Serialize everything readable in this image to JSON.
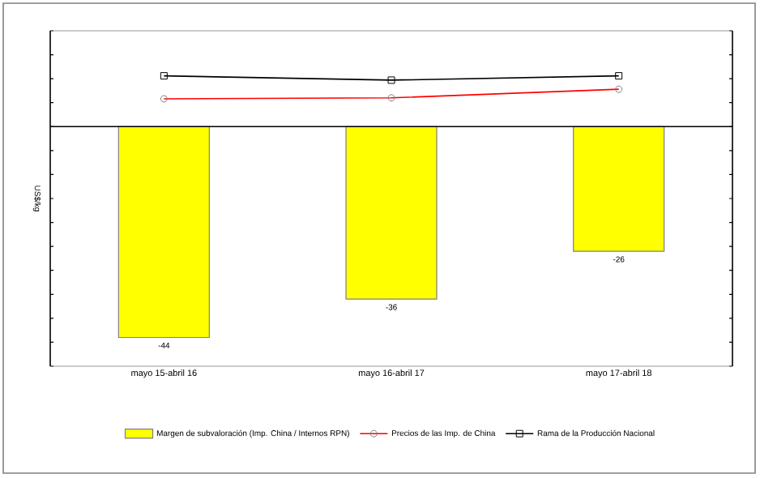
{
  "chart_data": {
    "type": "bar",
    "ylabel": "US$/kg",
    "categories": [
      "mayo 15-abril 16",
      "mayo 16-abril 17",
      "mayo 17-abril 18"
    ],
    "series": [
      {
        "name": "Margen de subvaloración (Imp. China / Internos RPN)",
        "color": "#ffff00",
        "values": [
          -44,
          -36,
          -26
        ],
        "value_labels": [
          "-44",
          "-36",
          "-26"
        ]
      },
      {
        "name": "Precios de las Imp. de China",
        "type": "line",
        "color": "#ff0000",
        "marker": "circle",
        "values": [
          5.8,
          6.0,
          7.8
        ]
      },
      {
        "name": "Rama de la Producción Nacional",
        "type": "line",
        "color": "#000000",
        "marker": "square",
        "values": [
          10.6,
          9.7,
          10.6
        ]
      }
    ],
    "ylim": [
      -50,
      20
    ],
    "yticks": [
      {
        "value": -50,
        "label": null
      },
      {
        "value": -45,
        "label": null
      },
      {
        "value": -40,
        "label": null
      },
      {
        "value": -35,
        "label": null
      },
      {
        "value": -30,
        "label": null
      },
      {
        "value": -25,
        "label": null
      },
      {
        "value": -20,
        "label": null
      },
      {
        "value": -15,
        "label": null
      },
      {
        "value": -10,
        "label": null
      },
      {
        "value": -5,
        "label": null
      },
      {
        "value": 0,
        "label": null
      },
      {
        "value": 5,
        "label": null
      },
      {
        "value": 10,
        "label": null
      },
      {
        "value": 15,
        "label": null
      },
      {
        "value": 20,
        "label": null
      }
    ],
    "tick_labels": "x",
    "grid": false,
    "legend": "bottom"
  }
}
